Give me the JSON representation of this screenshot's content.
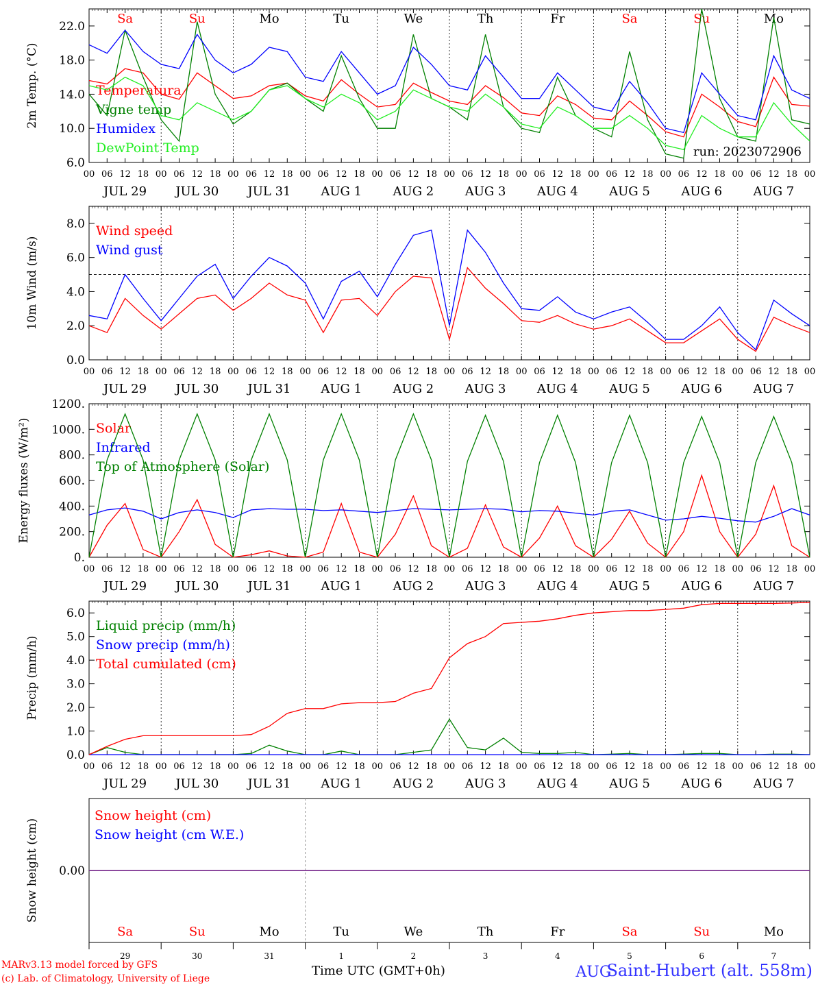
{
  "chart_data": [
    {
      "type": "line",
      "ylabel": "2m Temp. (°C)",
      "ylim": [
        6,
        24
      ],
      "yticks": [
        "22.0",
        "18.0",
        "14.0",
        "10.0",
        "6.0"
      ],
      "day_labels": [
        "Sa",
        "Su",
        "Mo",
        "Tu",
        "We",
        "Th",
        "Fr",
        "Sa",
        "Su",
        "Mo"
      ],
      "date_labels": [
        "JUL 29",
        "JUL 30",
        "JUL 31",
        "AUG  1",
        "AUG  2",
        "AUG  3",
        "AUG  4",
        "AUG  5",
        "AUG  6",
        "AUG  7"
      ],
      "hour_ticks": [
        "00",
        "06",
        "12",
        "18"
      ],
      "annotation": "run: 2023072906",
      "grid": "vertical dashed at 00 UTC",
      "x_step_hours": 6,
      "series": [
        {
          "name": "Temperatura",
          "color": "#ff0000",
          "values": [
            15.6,
            15.2,
            17.0,
            16.5,
            14.0,
            13.4,
            16.5,
            15.0,
            13.5,
            13.8,
            15.0,
            15.3,
            13.8,
            13.2,
            15.7,
            14.0,
            12.5,
            12.8,
            15.3,
            14.2,
            13.2,
            12.8,
            15.0,
            13.6,
            11.8,
            11.5,
            13.8,
            12.8,
            11.2,
            11.0,
            13.2,
            11.5,
            9.6,
            9.0,
            14.0,
            12.5,
            10.8,
            10.2,
            16.0,
            12.8,
            12.6
          ]
        },
        {
          "name": "Vigne temp",
          "color": "#008000",
          "values": [
            14.0,
            11.5,
            21.5,
            16.0,
            11.0,
            8.5,
            22.5,
            14.0,
            10.5,
            12.0,
            14.5,
            15.3,
            13.5,
            12.0,
            18.5,
            13.5,
            10.0,
            10.0,
            21.0,
            13.5,
            12.5,
            11.0,
            21.0,
            12.5,
            10.0,
            9.5,
            16.0,
            11.5,
            10.0,
            9.0,
            19.0,
            11.0,
            7.0,
            6.5,
            24.0,
            13.5,
            9.0,
            8.5,
            23.0,
            11.0,
            10.5
          ]
        },
        {
          "name": "Humidex",
          "color": "#0000ff",
          "values": [
            19.8,
            18.8,
            21.5,
            19.0,
            17.5,
            17.0,
            21.0,
            18.0,
            16.5,
            17.5,
            19.5,
            19.0,
            16.0,
            15.5,
            19.0,
            16.5,
            14.0,
            15.0,
            19.5,
            17.5,
            15.0,
            14.5,
            18.5,
            16.0,
            13.5,
            13.5,
            16.5,
            14.5,
            12.5,
            12.0,
            15.5,
            13.0,
            10.0,
            9.5,
            16.5,
            14.0,
            11.5,
            11.0,
            18.5,
            14.5,
            13.5
          ]
        },
        {
          "name": "DewPoint Temp",
          "color": "#22ee22",
          "values": [
            15.0,
            14.5,
            16.0,
            15.0,
            11.5,
            11.0,
            13.0,
            12.0,
            11.0,
            12.0,
            14.5,
            15.0,
            13.5,
            12.5,
            14.0,
            13.0,
            11.0,
            12.0,
            14.5,
            13.5,
            12.5,
            12.0,
            14.0,
            12.5,
            10.5,
            10.0,
            12.5,
            11.5,
            10.0,
            10.0,
            11.5,
            10.0,
            8.0,
            7.5,
            11.5,
            10.0,
            9.0,
            9.0,
            13.0,
            10.5,
            8.5
          ]
        }
      ]
    },
    {
      "type": "line",
      "ylabel": "10m Wind (m/s)",
      "ylim": [
        0,
        9
      ],
      "yticks": [
        "8.0",
        "6.0",
        "4.0",
        "2.0",
        "0.0"
      ],
      "reference_line": 5,
      "date_labels": [
        "JUL 29",
        "JUL 30",
        "JUL 31",
        "AUG  1",
        "AUG  2",
        "AUG  3",
        "AUG  4",
        "AUG  5",
        "AUG  6",
        "AUG  7"
      ],
      "hour_ticks": [
        "00",
        "06",
        "12",
        "18"
      ],
      "x_step_hours": 6,
      "series": [
        {
          "name": "Wind speed",
          "color": "#ff0000",
          "values": [
            2.0,
            1.6,
            3.6,
            2.6,
            1.8,
            2.7,
            3.6,
            3.8,
            2.9,
            3.6,
            4.5,
            3.8,
            3.5,
            1.6,
            3.5,
            3.6,
            2.6,
            4.0,
            4.9,
            4.8,
            1.2,
            5.4,
            4.2,
            3.3,
            2.3,
            2.2,
            2.6,
            2.1,
            1.8,
            2.0,
            2.4,
            1.7,
            1.0,
            1.0,
            1.7,
            2.4,
            1.2,
            0.5,
            2.5,
            2.0,
            1.6
          ]
        },
        {
          "name": "Wind gust",
          "color": "#0000ff",
          "values": [
            2.6,
            2.4,
            5.0,
            3.6,
            2.3,
            3.6,
            4.9,
            5.6,
            3.6,
            4.9,
            6.0,
            5.5,
            4.5,
            2.4,
            4.6,
            5.2,
            3.7,
            5.6,
            7.3,
            7.6,
            2.0,
            7.6,
            6.3,
            4.5,
            3.0,
            2.9,
            3.7,
            2.8,
            2.4,
            2.8,
            3.1,
            2.2,
            1.2,
            1.2,
            2.0,
            3.1,
            1.6,
            0.6,
            3.5,
            2.7,
            2.0
          ]
        }
      ]
    },
    {
      "type": "line",
      "ylabel": "Energy fluxes (W/m²)",
      "ylim": [
        0,
        1200
      ],
      "yticks": [
        "1200.",
        "1000.",
        "800.",
        "600.",
        "400.",
        "200.",
        "0."
      ],
      "date_labels": [
        "JUL 29",
        "JUL 30",
        "JUL 31",
        "AUG  1",
        "AUG  2",
        "AUG  3",
        "AUG  4",
        "AUG  5",
        "AUG  6",
        "AUG  7"
      ],
      "hour_ticks": [
        "00",
        "06",
        "12",
        "18"
      ],
      "x_step_hours": 6,
      "series": [
        {
          "name": "Solar",
          "color": "#ff0000",
          "values": [
            0,
            250,
            420,
            60,
            0,
            200,
            450,
            100,
            0,
            20,
            50,
            10,
            0,
            40,
            420,
            40,
            0,
            180,
            480,
            90,
            0,
            70,
            410,
            80,
            0,
            150,
            400,
            90,
            0,
            140,
            360,
            110,
            0,
            200,
            640,
            200,
            0,
            180,
            560,
            90,
            0
          ]
        },
        {
          "name": "Infrared",
          "color": "#0000ff",
          "values": [
            330,
            370,
            385,
            360,
            300,
            350,
            370,
            350,
            310,
            370,
            380,
            375,
            375,
            365,
            370,
            360,
            350,
            365,
            380,
            375,
            370,
            375,
            380,
            375,
            355,
            365,
            360,
            345,
            330,
            360,
            370,
            330,
            290,
            300,
            320,
            305,
            285,
            275,
            320,
            380,
            330
          ]
        },
        {
          "name": "Top of Atmosphere (Solar)",
          "color": "#008000",
          "values": [
            0,
            760,
            1120,
            760,
            0,
            760,
            1120,
            760,
            0,
            760,
            1120,
            760,
            0,
            760,
            1120,
            760,
            0,
            760,
            1120,
            760,
            0,
            750,
            1110,
            750,
            0,
            740,
            1110,
            740,
            0,
            740,
            1110,
            740,
            0,
            740,
            1100,
            740,
            0,
            740,
            1100,
            740,
            0
          ]
        }
      ]
    },
    {
      "type": "line",
      "ylabel": "Precip (mm/h)",
      "ylim": [
        0,
        6.5
      ],
      "yticks": [
        "6.0",
        "5.0",
        "4.0",
        "3.0",
        "2.0",
        "1.0",
        "0.0"
      ],
      "date_labels": [
        "JUL 29",
        "JUL 30",
        "JUL 31",
        "AUG  1",
        "AUG  2",
        "AUG  3",
        "AUG  4",
        "AUG  5",
        "AUG  6",
        "AUG  7"
      ],
      "hour_ticks": [
        "00",
        "06",
        "12",
        "18"
      ],
      "x_step_hours": 6,
      "series": [
        {
          "name": "Liquid precip (mm/h)",
          "color": "#008000",
          "values": [
            0,
            0.3,
            0.1,
            0,
            0,
            0,
            0,
            0,
            0,
            0.05,
            0.4,
            0.15,
            0,
            0,
            0.15,
            0,
            0,
            0,
            0.1,
            0.2,
            1.5,
            0.3,
            0.2,
            0.7,
            0.1,
            0.05,
            0.05,
            0.1,
            0,
            0.02,
            0.05,
            0,
            0,
            0.02,
            0.05,
            0.05,
            0,
            0,
            0.02,
            0.02,
            0
          ]
        },
        {
          "name": "Snow precip (mm/h)",
          "color": "#0000ff",
          "values": [
            0,
            0,
            0,
            0,
            0,
            0,
            0,
            0,
            0,
            0,
            0,
            0,
            0,
            0,
            0,
            0,
            0,
            0,
            0,
            0,
            0,
            0,
            0,
            0,
            0,
            0,
            0,
            0,
            0,
            0,
            0,
            0,
            0,
            0,
            0,
            0,
            0,
            0,
            0,
            0,
            0
          ]
        },
        {
          "name": "Total cumulated (cm)",
          "color": "#ff0000",
          "values": [
            0,
            0.35,
            0.65,
            0.8,
            0.8,
            0.8,
            0.8,
            0.8,
            0.8,
            0.85,
            1.2,
            1.75,
            1.95,
            1.95,
            2.15,
            2.2,
            2.2,
            2.25,
            2.6,
            2.8,
            4.1,
            4.7,
            5.0,
            5.55,
            5.6,
            5.65,
            5.75,
            5.9,
            6.0,
            6.05,
            6.1,
            6.1,
            6.15,
            6.2,
            6.35,
            6.4,
            6.4,
            6.4,
            6.4,
            6.42,
            6.45
          ]
        }
      ]
    },
    {
      "type": "line",
      "ylabel": "Snow height (cm)",
      "yticks": [
        "0.00"
      ],
      "day_labels": [
        "Sa",
        "Su",
        "Mo",
        "Tu",
        "We",
        "Th",
        "Fr",
        "Sa",
        "Su",
        "Mo"
      ],
      "day_numbers": [
        "29",
        "30",
        "31",
        "1",
        "2",
        "3",
        "4",
        "5",
        "6",
        "7"
      ],
      "month_label": "AUG",
      "x_step_hours": 6,
      "series": [
        {
          "name": "Snow height (cm)",
          "color": "#ff0000",
          "values": [
            0,
            0
          ]
        },
        {
          "name": "Snow height (cm W.E.)",
          "color": "#0000ff",
          "values": [
            0,
            0
          ]
        }
      ]
    }
  ],
  "footer": {
    "credit_line1": "MARv3.13 model forced by GFS",
    "credit_line2": "(c) Lab. of Climatology, University of Liege",
    "x_title": "Time UTC (GMT+0h)",
    "station": "Saint-Hubert (alt. 558m)"
  },
  "colors": {
    "weekend": "#ff0000",
    "weekday": "#000000",
    "accent": "#3333ff"
  }
}
